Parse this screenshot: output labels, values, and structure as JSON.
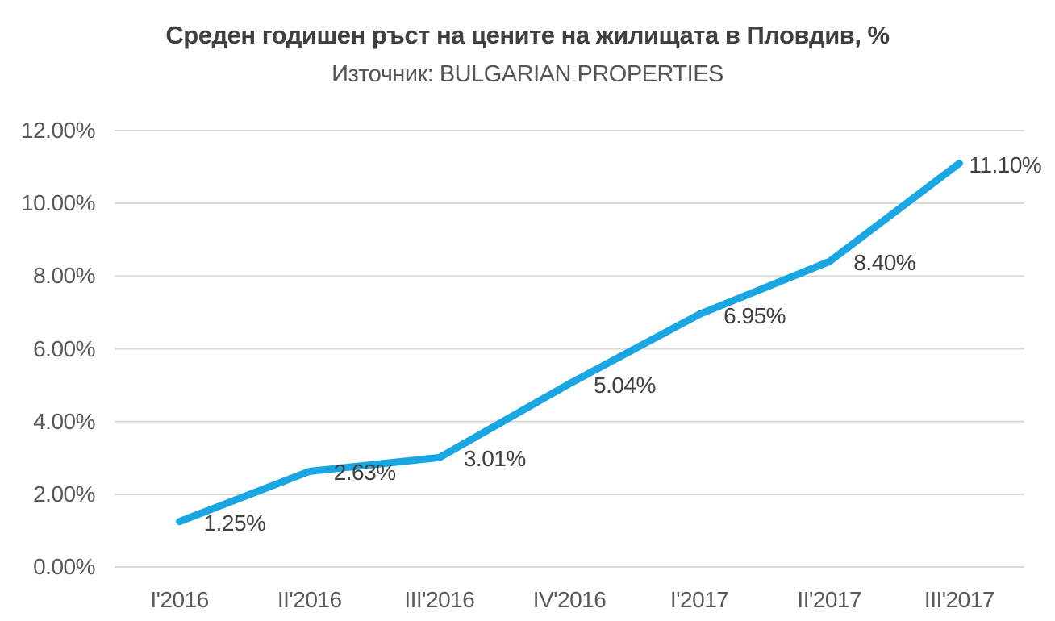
{
  "chart_data": {
    "type": "line",
    "title": "Среден годишен ръст на цените на жилищата в Пловдив, %",
    "subtitle": "Източник: BULGARIAN PROPERTIES",
    "categories": [
      "I'2016",
      "II'2016",
      "III'2016",
      "IV'2016",
      "I'2017",
      "II'2017",
      "III'2017"
    ],
    "series": [
      {
        "name": "Среден годишен ръст",
        "values": [
          1.25,
          2.63,
          3.01,
          5.04,
          6.95,
          8.4,
          11.1
        ],
        "point_labels": [
          "1.25%",
          "2.63%",
          "3.01%",
          "5.04%",
          "6.95%",
          "8.40%",
          "11.10%"
        ]
      }
    ],
    "xlabel": "",
    "ylabel": "",
    "ylim": [
      0,
      12
    ],
    "y_tick_labels": [
      "0.00%",
      "2.00%",
      "4.00%",
      "6.00%",
      "8.00%",
      "10.00%",
      "12.00%"
    ],
    "grid": true,
    "legend_position": "none",
    "data_label_position": "right",
    "colors": {
      "line": "#1AA6E3",
      "gridline": "#D9D9D9",
      "axis_text": "#595959",
      "data_label_text": "#404040",
      "title_text": "#404040",
      "subtitle_text": "#555555",
      "background": "#FFFFFF"
    }
  }
}
